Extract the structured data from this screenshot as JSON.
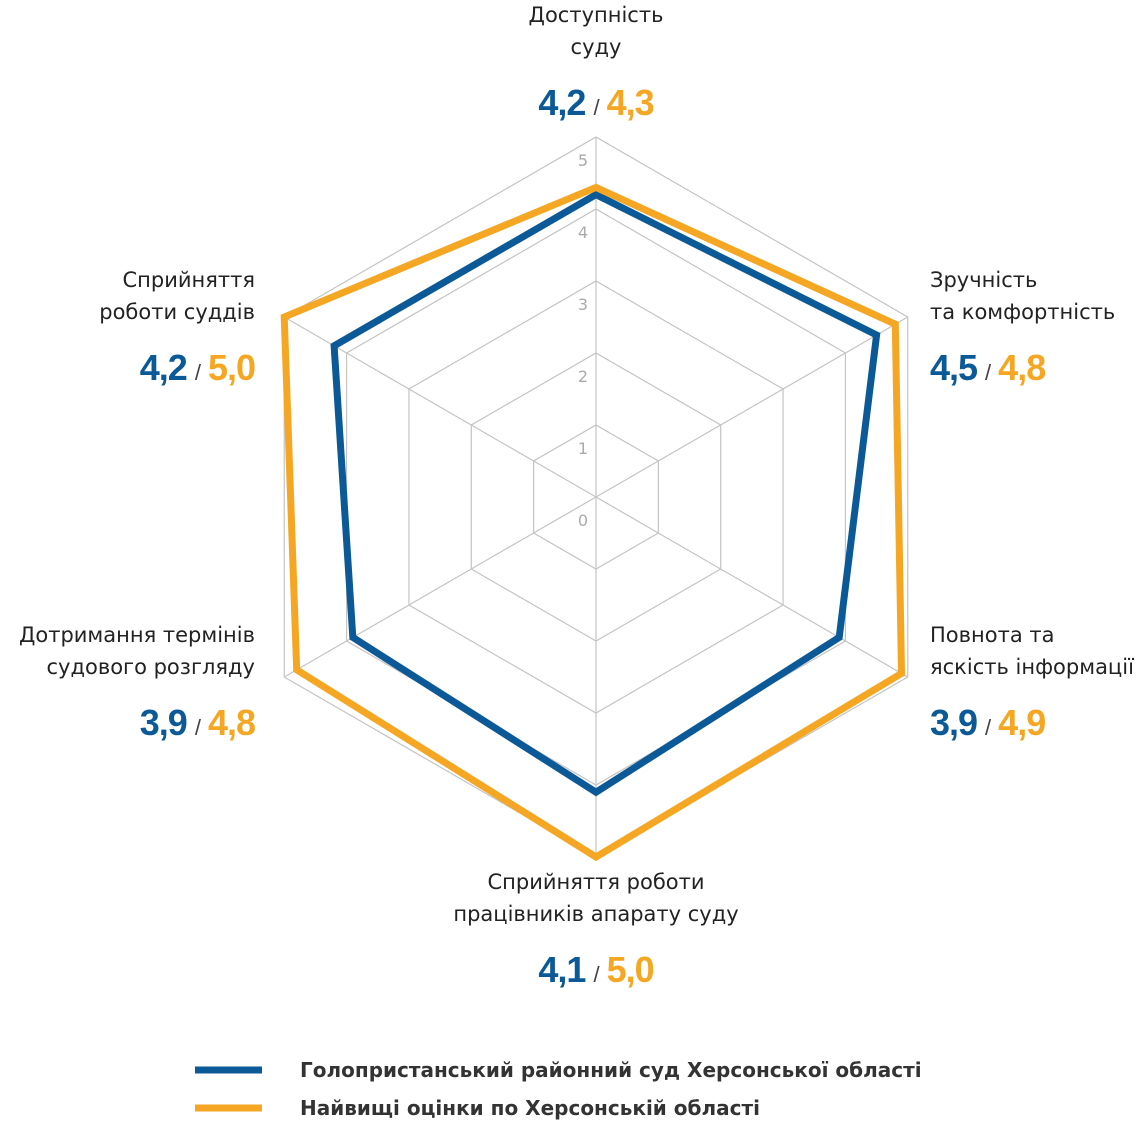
{
  "chart_data": {
    "type": "radar",
    "categories": [
      [
        "Доступність",
        "суду"
      ],
      [
        "Зручність",
        "та комфортність"
      ],
      [
        "Повнота та",
        "яскість інформації"
      ],
      [
        "Сприйняття роботи",
        "працівників апарату суду"
      ],
      [
        "Дотримання термінів",
        "судового розгляду"
      ],
      [
        "Сприйняття",
        "роботи суддів"
      ]
    ],
    "series": [
      {
        "name": "Голопристанський районний суд Херсонської області",
        "color": "#0b5a97",
        "values": [
          4.2,
          4.5,
          3.9,
          4.1,
          3.9,
          4.2
        ],
        "value_labels": [
          "4,2",
          "4,5",
          "3,9",
          "4,1",
          "3,9",
          "4,2"
        ]
      },
      {
        "name": "Найвищі оцінки по Херсонській області",
        "color": "#f5a623",
        "values": [
          4.3,
          4.8,
          4.9,
          5.0,
          4.8,
          5.0
        ],
        "value_labels": [
          "4,3",
          "4,8",
          "4,9",
          "5,0",
          "4,8",
          "5,0"
        ]
      }
    ],
    "separator": "/",
    "ylim": [
      0,
      5
    ],
    "yticks": [
      0,
      1,
      2,
      3,
      4,
      5
    ],
    "grid": true
  }
}
